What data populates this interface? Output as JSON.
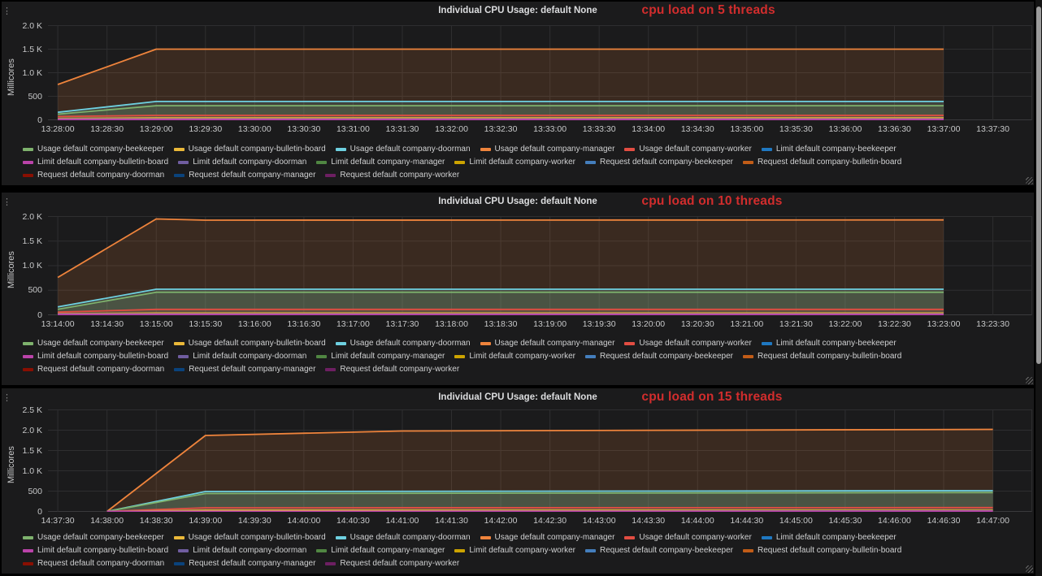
{
  "panels": [
    {
      "title": "Individual CPU Usage: default None",
      "annotation": "cpu load on 5 threads",
      "annotation_color": "#d22d2d",
      "ylabel": "Millicores"
    },
    {
      "title": "Individual CPU Usage: default None",
      "annotation": "cpu load on 10 threads",
      "annotation_color": "#d22d2d",
      "ylabel": "Millicores"
    },
    {
      "title": "Individual CPU Usage: default None",
      "annotation": "cpu load on 15 threads",
      "annotation_color": "#d22d2d",
      "ylabel": "Millicores"
    }
  ],
  "legend_items": [
    {
      "label": "Usage default company-beekeeper",
      "color": "#7EB26D"
    },
    {
      "label": "Usage default company-bulletin-board",
      "color": "#EAB839"
    },
    {
      "label": "Usage default company-doorman",
      "color": "#6ED0E0"
    },
    {
      "label": "Usage default company-manager",
      "color": "#EF843C"
    },
    {
      "label": "Usage default company-worker",
      "color": "#E24D42"
    },
    {
      "label": "Limit default company-beekeeper",
      "color": "#1F78C1"
    },
    {
      "label": "Limit default company-bulletin-board",
      "color": "#BA43A9"
    },
    {
      "label": "Limit default company-doorman",
      "color": "#705DA0"
    },
    {
      "label": "Limit default company-manager",
      "color": "#508642"
    },
    {
      "label": "Limit default company-worker",
      "color": "#CCA300"
    },
    {
      "label": "Request default company-beekeeper",
      "color": "#447EBC"
    },
    {
      "label": "Request default company-bulletin-board",
      "color": "#C15C17"
    },
    {
      "label": "Request default company-doorman",
      "color": "#890F02"
    },
    {
      "label": "Request default company-manager",
      "color": "#0A437C"
    },
    {
      "label": "Request default company-worker",
      "color": "#6D1F62"
    }
  ],
  "chart_data": [
    {
      "type": "line",
      "title": "Individual CPU Usage: default None",
      "annotation": "cpu load on 5 threads",
      "ylabel": "Millicores",
      "xlabel": "",
      "ylim": [
        0,
        2000
      ],
      "y_tick_values": [
        0,
        500,
        1000,
        1500,
        2000
      ],
      "y_tick_labels": [
        "0",
        "500",
        "1.0 K",
        "1.5 K",
        "2.0 K"
      ],
      "x_tick_labels": [
        "13:28:00",
        "13:28:30",
        "13:29:00",
        "13:29:30",
        "13:30:00",
        "13:30:30",
        "13:31:00",
        "13:31:30",
        "13:32:00",
        "13:32:30",
        "13:33:00",
        "13:33:30",
        "13:34:00",
        "13:34:30",
        "13:35:00",
        "13:35:30",
        "13:36:00",
        "13:36:30",
        "13:37:00",
        "13:37:30"
      ],
      "grid": true,
      "legend_position": "bottom",
      "series": [
        {
          "name": "Usage default company-manager",
          "color": "#EF843C",
          "points": [
            [
              0,
              750
            ],
            [
              2,
              1500
            ],
            [
              18,
              1500
            ]
          ]
        },
        {
          "name": "Usage default company-doorman",
          "color": "#6ED0E0",
          "points": [
            [
              0,
              160
            ],
            [
              2,
              390
            ],
            [
              18,
              390
            ]
          ]
        },
        {
          "name": "Usage default company-beekeeper",
          "color": "#7EB26D",
          "points": [
            [
              0,
              120
            ],
            [
              2,
              300
            ],
            [
              18,
              300
            ]
          ]
        },
        {
          "name": "Usage default company-worker",
          "color": "#E24D42",
          "points": [
            [
              0,
              70
            ],
            [
              2,
              95
            ],
            [
              18,
              95
            ]
          ]
        },
        {
          "name": "Usage default company-bulletin-board",
          "color": "#EAB839",
          "points": [
            [
              0,
              30
            ],
            [
              2,
              40
            ],
            [
              18,
              40
            ]
          ]
        },
        {
          "name": "Limit default company-doorman",
          "color": "#705DA0",
          "points": [
            [
              0,
              18
            ],
            [
              18,
              18
            ]
          ]
        },
        {
          "name": "Limit default company-bulletin-board",
          "color": "#BA43A9",
          "points": [
            [
              0,
              6
            ],
            [
              18,
              6
            ]
          ]
        }
      ]
    },
    {
      "type": "line",
      "title": "Individual CPU Usage: default None",
      "annotation": "cpu load on 10 threads",
      "ylabel": "Millicores",
      "xlabel": "",
      "ylim": [
        0,
        2000
      ],
      "y_tick_values": [
        0,
        500,
        1000,
        1500,
        2000
      ],
      "y_tick_labels": [
        "0",
        "500",
        "1.0 K",
        "1.5 K",
        "2.0 K"
      ],
      "x_tick_labels": [
        "13:14:00",
        "13:14:30",
        "13:15:00",
        "13:15:30",
        "13:16:00",
        "13:16:30",
        "13:17:00",
        "13:17:30",
        "13:18:00",
        "13:18:30",
        "13:19:00",
        "13:19:30",
        "13:20:00",
        "13:20:30",
        "13:21:00",
        "13:21:30",
        "13:22:00",
        "13:22:30",
        "13:23:00",
        "13:23:30"
      ],
      "grid": true,
      "legend_position": "bottom",
      "series": [
        {
          "name": "Usage default company-manager",
          "color": "#EF843C",
          "points": [
            [
              0,
              760
            ],
            [
              2,
              1950
            ],
            [
              3,
              1925
            ],
            [
              18,
              1930
            ]
          ]
        },
        {
          "name": "Usage default company-doorman",
          "color": "#6ED0E0",
          "points": [
            [
              0,
              160
            ],
            [
              2,
              520
            ],
            [
              18,
              520
            ]
          ]
        },
        {
          "name": "Usage default company-beekeeper",
          "color": "#7EB26D",
          "points": [
            [
              0,
              110
            ],
            [
              2,
              460
            ],
            [
              18,
              460
            ]
          ]
        },
        {
          "name": "Usage default company-worker",
          "color": "#E24D42",
          "points": [
            [
              0,
              55
            ],
            [
              2,
              110
            ],
            [
              18,
              110
            ]
          ]
        },
        {
          "name": "Usage default company-bulletin-board",
          "color": "#EAB839",
          "points": [
            [
              0,
              25
            ],
            [
              2,
              35
            ],
            [
              18,
              35
            ]
          ]
        },
        {
          "name": "Limit default company-doorman",
          "color": "#705DA0",
          "points": [
            [
              0,
              16
            ],
            [
              18,
              16
            ]
          ]
        },
        {
          "name": "Limit default company-bulletin-board",
          "color": "#BA43A9",
          "points": [
            [
              0,
              5
            ],
            [
              18,
              5
            ]
          ]
        }
      ]
    },
    {
      "type": "line",
      "title": "Individual CPU Usage: default None",
      "annotation": "cpu load on 15 threads",
      "ylabel": "Millicores",
      "xlabel": "",
      "ylim": [
        0,
        2500
      ],
      "y_tick_values": [
        0,
        500,
        1000,
        1500,
        2000,
        2500
      ],
      "y_tick_labels": [
        "0",
        "500",
        "1.0 K",
        "1.5 K",
        "2.0 K",
        "2.5 K"
      ],
      "x_tick_labels": [
        "14:37:30",
        "14:38:00",
        "14:38:30",
        "14:39:00",
        "14:39:30",
        "14:40:00",
        "14:40:30",
        "14:41:00",
        "14:41:30",
        "14:42:00",
        "14:42:30",
        "14:43:00",
        "14:43:30",
        "14:44:00",
        "14:44:30",
        "14:45:00",
        "14:45:30",
        "14:46:00",
        "14:46:30",
        "14:47:00"
      ],
      "grid": true,
      "legend_position": "bottom",
      "series": [
        {
          "name": "Usage default company-manager",
          "color": "#EF843C",
          "points": [
            [
              1,
              0
            ],
            [
              3,
              1870
            ],
            [
              7,
              1980
            ],
            [
              19,
              2020
            ]
          ]
        },
        {
          "name": "Usage default company-doorman",
          "color": "#6ED0E0",
          "points": [
            [
              1,
              0
            ],
            [
              3,
              490
            ],
            [
              19,
              510
            ]
          ]
        },
        {
          "name": "Usage default company-beekeeper",
          "color": "#7EB26D",
          "points": [
            [
              1,
              0
            ],
            [
              3,
              440
            ],
            [
              19,
              465
            ]
          ]
        },
        {
          "name": "Usage default company-worker",
          "color": "#E24D42",
          "points": [
            [
              1,
              0
            ],
            [
              3,
              90
            ],
            [
              19,
              95
            ]
          ]
        },
        {
          "name": "Usage default company-bulletin-board",
          "color": "#EAB839",
          "points": [
            [
              1,
              0
            ],
            [
              3,
              30
            ],
            [
              19,
              30
            ]
          ]
        },
        {
          "name": "Limit default company-doorman",
          "color": "#705DA0",
          "points": [
            [
              1,
              0
            ],
            [
              19,
              14
            ]
          ]
        },
        {
          "name": "Limit default company-bulletin-board",
          "color": "#BA43A9",
          "points": [
            [
              1,
              0
            ],
            [
              19,
              5
            ]
          ]
        }
      ]
    }
  ]
}
